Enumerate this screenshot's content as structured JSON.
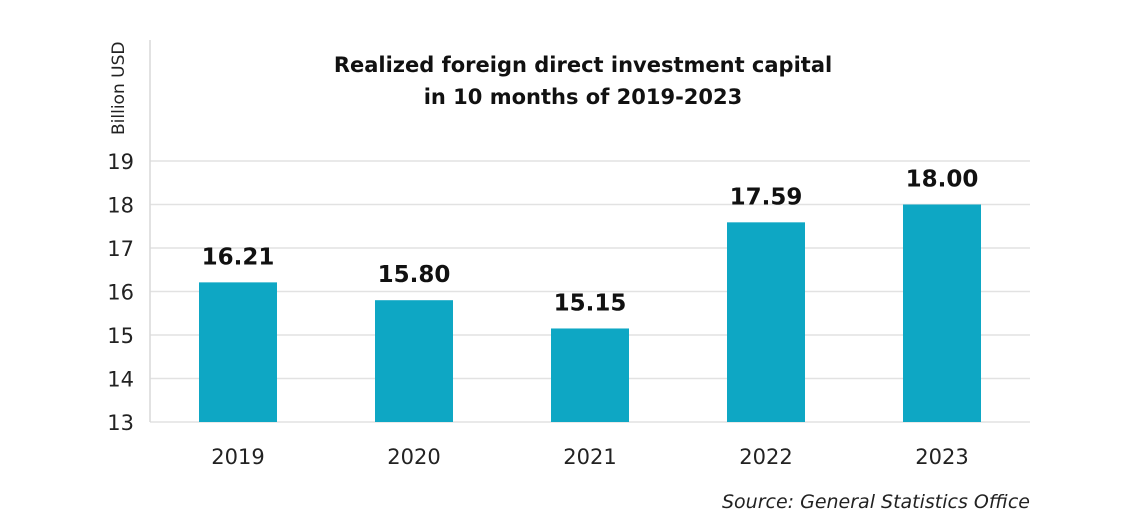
{
  "chart_data": {
    "type": "bar",
    "title_lines": [
      "Realized foreign direct investment capital",
      "in 10 months of 2019-2023"
    ],
    "categories": [
      "2019",
      "2020",
      "2021",
      "2022",
      "2023"
    ],
    "values": [
      16.21,
      15.8,
      15.15,
      17.59,
      18.0
    ],
    "data_labels": [
      "16.21",
      "15.80",
      "15.15",
      "17.59",
      "18.00"
    ],
    "xlabel": "",
    "ylabel": "Billion USD",
    "ylim": [
      13,
      19
    ],
    "yticks": [
      13,
      14,
      15,
      16,
      17,
      18,
      19
    ],
    "grid": true,
    "bar_color": "#0ea7c4",
    "source": "Source: General Statistics Office"
  }
}
